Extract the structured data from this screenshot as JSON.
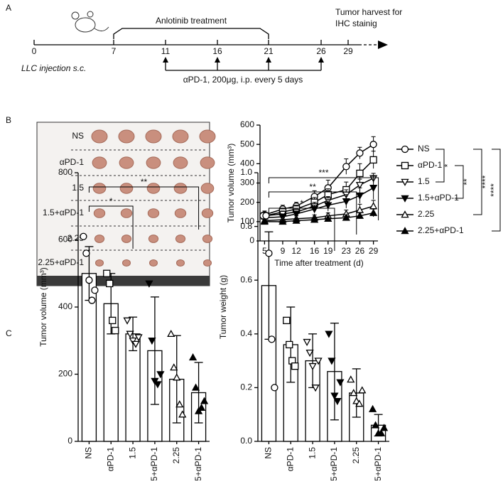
{
  "panels": [
    "A",
    "B",
    "C"
  ],
  "timeline": {
    "days": [
      0,
      7,
      11,
      16,
      21,
      26,
      29
    ],
    "treatment": "Anlotinib treatment",
    "injection": "LLC injection s.c.",
    "harvest": [
      "Tumor harvest for",
      "IHC stainig"
    ],
    "dosing": "αPD-1, 200μg, i.p. every 5 days"
  },
  "photo": {
    "rows": [
      "NS",
      "αPD-1",
      "1.5",
      "1.5+αPD-1",
      "2.25",
      "2.25+αPD-1"
    ]
  },
  "chart_data": [
    {
      "type": "line",
      "x": [
        5,
        9,
        12,
        16,
        19,
        23,
        26,
        29
      ],
      "xlim": [
        4,
        30
      ],
      "xticks": [
        5,
        9,
        12,
        16,
        19,
        23,
        26,
        29
      ],
      "ylim": [
        0,
        600
      ],
      "yticks": [
        0,
        100,
        200,
        300,
        400,
        500,
        600
      ],
      "xlabel": "Time after treatment (d)",
      "ylabel": "Tumor volume (mm³)",
      "series": [
        {
          "name": "NS",
          "marker": "circle-open",
          "color": "#000000",
          "values": [
            135,
            165,
            180,
            230,
            275,
            385,
            455,
            500
          ],
          "errors": [
            20,
            20,
            20,
            30,
            40,
            40,
            30,
            40
          ]
        },
        {
          "name": "αPD-1",
          "marker": "square-open",
          "color": "#000000",
          "values": [
            130,
            150,
            165,
            200,
            240,
            265,
            350,
            420
          ],
          "errors": [
            15,
            20,
            20,
            25,
            30,
            40,
            50,
            45
          ]
        },
        {
          "name": "1.5",
          "marker": "tri-down-open",
          "color": "#000000",
          "values": [
            130,
            140,
            150,
            180,
            210,
            240,
            290,
            325
          ],
          "errors": [
            10,
            15,
            15,
            20,
            20,
            25,
            30,
            25
          ]
        },
        {
          "name": "1.5+αPD-1",
          "marker": "tri-down-filled",
          "color": "#000000",
          "values": [
            120,
            125,
            140,
            165,
            185,
            205,
            235,
            275
          ],
          "errors": [
            10,
            15,
            15,
            20,
            30,
            35,
            40,
            60
          ]
        },
        {
          "name": "2.25",
          "marker": "tri-up-open",
          "color": "#000000",
          "values": [
            105,
            110,
            115,
            120,
            130,
            140,
            160,
            180
          ],
          "errors": [
            10,
            10,
            15,
            15,
            15,
            20,
            30,
            30
          ]
        },
        {
          "name": "2.25+αPD-1",
          "marker": "tri-up-filled",
          "color": "#000000",
          "values": [
            100,
            100,
            105,
            110,
            115,
            120,
            130,
            145
          ],
          "errors": [
            10,
            10,
            10,
            10,
            15,
            15,
            15,
            20
          ]
        }
      ],
      "significance": [
        {
          "label": "*",
          "series": [
            0,
            2
          ]
        },
        {
          "label": "**",
          "series": [
            1,
            3
          ]
        },
        {
          "label": "****",
          "series": [
            0,
            4
          ]
        },
        {
          "label": "****",
          "series": [
            0,
            5
          ]
        }
      ]
    },
    {
      "type": "bar",
      "categories": [
        "NS",
        "αPD-1",
        "1.5",
        "1.5+αPD-1",
        "2.25",
        "2.25+αPD-1"
      ],
      "markers": [
        "circle-open",
        "square-open",
        "tri-down-open",
        "tri-down-filled",
        "tri-up-open",
        "tri-up-filled"
      ],
      "color": "#ffffff",
      "values": [
        500,
        410,
        320,
        270,
        185,
        145
      ],
      "errors": [
        80,
        90,
        50,
        160,
        130,
        90
      ],
      "points": [
        [
          610,
          560,
          480,
          420,
          450
        ],
        [
          500,
          470,
          360,
          330
        ],
        [
          360,
          320,
          300,
          290,
          310
        ],
        [
          470,
          300,
          180,
          170,
          200
        ],
        [
          320,
          220,
          190,
          110,
          80
        ],
        [
          250,
          160,
          90,
          100,
          120
        ]
      ],
      "ylim": [
        0,
        800
      ],
      "yticks": [
        0,
        200,
        400,
        600,
        800
      ],
      "ylabel": "Tumor volume (mm³)",
      "significance": [
        {
          "label": "*",
          "categories": [
            0,
            2
          ]
        },
        {
          "label": "**",
          "categories": [
            0,
            5
          ]
        }
      ]
    },
    {
      "type": "bar",
      "categories": [
        "NS",
        "αPD-1",
        "1.5",
        "1.5+αPD-1",
        "2.25",
        "2.25+αPD-1"
      ],
      "markers": [
        "circle-open",
        "square-open",
        "tri-down-open",
        "tri-down-filled",
        "tri-up-open",
        "tri-up-filled"
      ],
      "color": "#ffffff",
      "values": [
        0.58,
        0.36,
        0.3,
        0.26,
        0.18,
        0.06
      ],
      "errors": [
        0.2,
        0.14,
        0.1,
        0.18,
        0.09,
        0.04
      ],
      "points": [
        [
          0.84,
          0.84,
          0.7,
          0.38,
          0.2
        ],
        [
          0.45,
          0.36,
          0.3,
          0.28
        ],
        [
          0.37,
          0.33,
          0.28,
          0.2,
          0.3
        ],
        [
          0.4,
          0.3,
          0.17,
          0.15,
          0.22
        ],
        [
          0.23,
          0.18,
          0.15,
          0.14,
          0.19
        ],
        [
          0.12,
          0.06,
          0.03,
          0.03,
          0.05
        ]
      ],
      "ylim": [
        0,
        1
      ],
      "yticks": [
        {
          "value": 0,
          "label": "0.0"
        },
        0.2,
        0.4,
        0.6,
        0.8,
        {
          "value": 1,
          "label": "1.0"
        }
      ],
      "ylabel": "Tumor weight (g)",
      "significance": [
        {
          "label": "*",
          "categories": [
            0,
            3
          ]
        },
        {
          "label": "**",
          "categories": [
            0,
            4
          ]
        },
        {
          "label": "***",
          "categories": [
            0,
            5
          ]
        }
      ]
    }
  ]
}
